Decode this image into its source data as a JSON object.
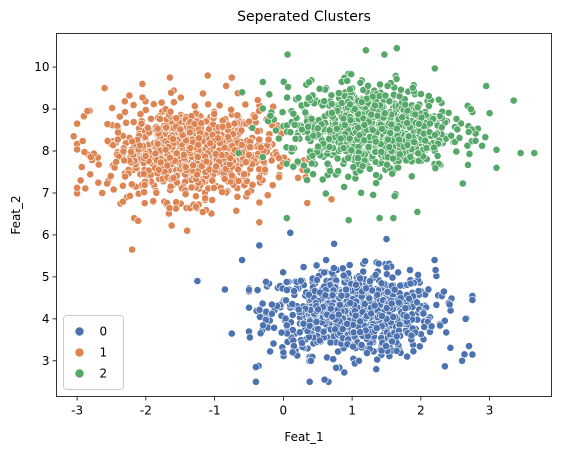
{
  "chart_data": {
    "type": "scatter",
    "title": "Seperated Clusters",
    "xlabel": "Feat_1",
    "ylabel": "Feat_2",
    "xlim": [
      -3.3,
      3.9
    ],
    "ylim": [
      2.15,
      10.8
    ],
    "xticks": [
      -3,
      -2,
      -1,
      0,
      1,
      2,
      3
    ],
    "yticks": [
      3,
      4,
      5,
      6,
      7,
      8,
      9,
      10
    ],
    "grid": false,
    "legend": "bottom-left",
    "marker": "circle",
    "series": [
      {
        "name": "0",
        "color": "#4c72b0",
        "points": [
          [
            -1.25,
            4.9
          ],
          [
            -0.35,
            5.75
          ],
          [
            0.1,
            6.05
          ],
          [
            -0.4,
            2.5
          ],
          [
            0.6,
            2.55
          ],
          [
            -0.4,
            2.85
          ],
          [
            2.7,
            3.35
          ],
          [
            2.75,
            3.15
          ],
          [
            2.75,
            4.45
          ],
          [
            2.65,
            4.0
          ],
          [
            2.2,
            5.4
          ],
          [
            -0.75,
            3.65
          ],
          [
            -0.85,
            4.7
          ],
          [
            -0.6,
            5.4
          ],
          [
            1.5,
            5.9
          ],
          [
            2.6,
            3.0
          ],
          [
            0.4,
            3.0
          ],
          [
            1.8,
            3.1
          ],
          [
            1.1,
            3.0
          ],
          [
            0.0,
            3.2
          ],
          [
            1.35,
            2.8
          ]
        ],
        "cluster": {
          "cx": 1.0,
          "cy": 4.15,
          "sx": 0.6,
          "sy": 0.5,
          "n": 900,
          "xmin": -0.5,
          "xmax": 2.75,
          "ymin": 2.5,
          "ymax": 6.1
        }
      },
      {
        "name": "1",
        "color": "#dd8452",
        "points": [
          [
            -3.05,
            8.35
          ],
          [
            -2.95,
            7.3
          ],
          [
            -2.2,
            5.65
          ],
          [
            -1.65,
            9.75
          ],
          [
            -1.1,
            9.8
          ],
          [
            0.7,
            6.85
          ],
          [
            -0.75,
            9.75
          ],
          [
            -2.6,
            9.5
          ],
          [
            -2.85,
            8.95
          ],
          [
            -1.4,
            6.1
          ],
          [
            -0.35,
            6.3
          ],
          [
            -2.05,
            9.6
          ]
        ],
        "cluster": {
          "cx": -1.35,
          "cy": 7.95,
          "sx": 0.6,
          "sy": 0.55,
          "n": 900,
          "xmin": -3.0,
          "xmax": 0.6,
          "ymin": 6.1,
          "ymax": 9.8
        }
      },
      {
        "name": "2",
        "color": "#55a868",
        "points": [
          [
            1.2,
            10.4
          ],
          [
            1.65,
            10.45
          ],
          [
            3.35,
            9.2
          ],
          [
            3.45,
            7.95
          ],
          [
            3.65,
            7.95
          ],
          [
            3.1,
            7.6
          ],
          [
            0.95,
            6.35
          ],
          [
            1.4,
            6.4
          ],
          [
            1.6,
            6.4
          ],
          [
            1.95,
            6.55
          ],
          [
            0.05,
            6.4
          ],
          [
            -0.65,
            7.95
          ],
          [
            -0.45,
            8.55
          ],
          [
            -0.6,
            9.4
          ],
          [
            2.95,
            9.55
          ],
          [
            3.0,
            8.9
          ]
        ],
        "cluster": {
          "cx": 1.25,
          "cy": 8.55,
          "sx": 0.6,
          "sy": 0.52,
          "n": 900,
          "xmin": -0.3,
          "xmax": 3.1,
          "ymin": 6.5,
          "ymax": 10.3
        }
      }
    ]
  }
}
